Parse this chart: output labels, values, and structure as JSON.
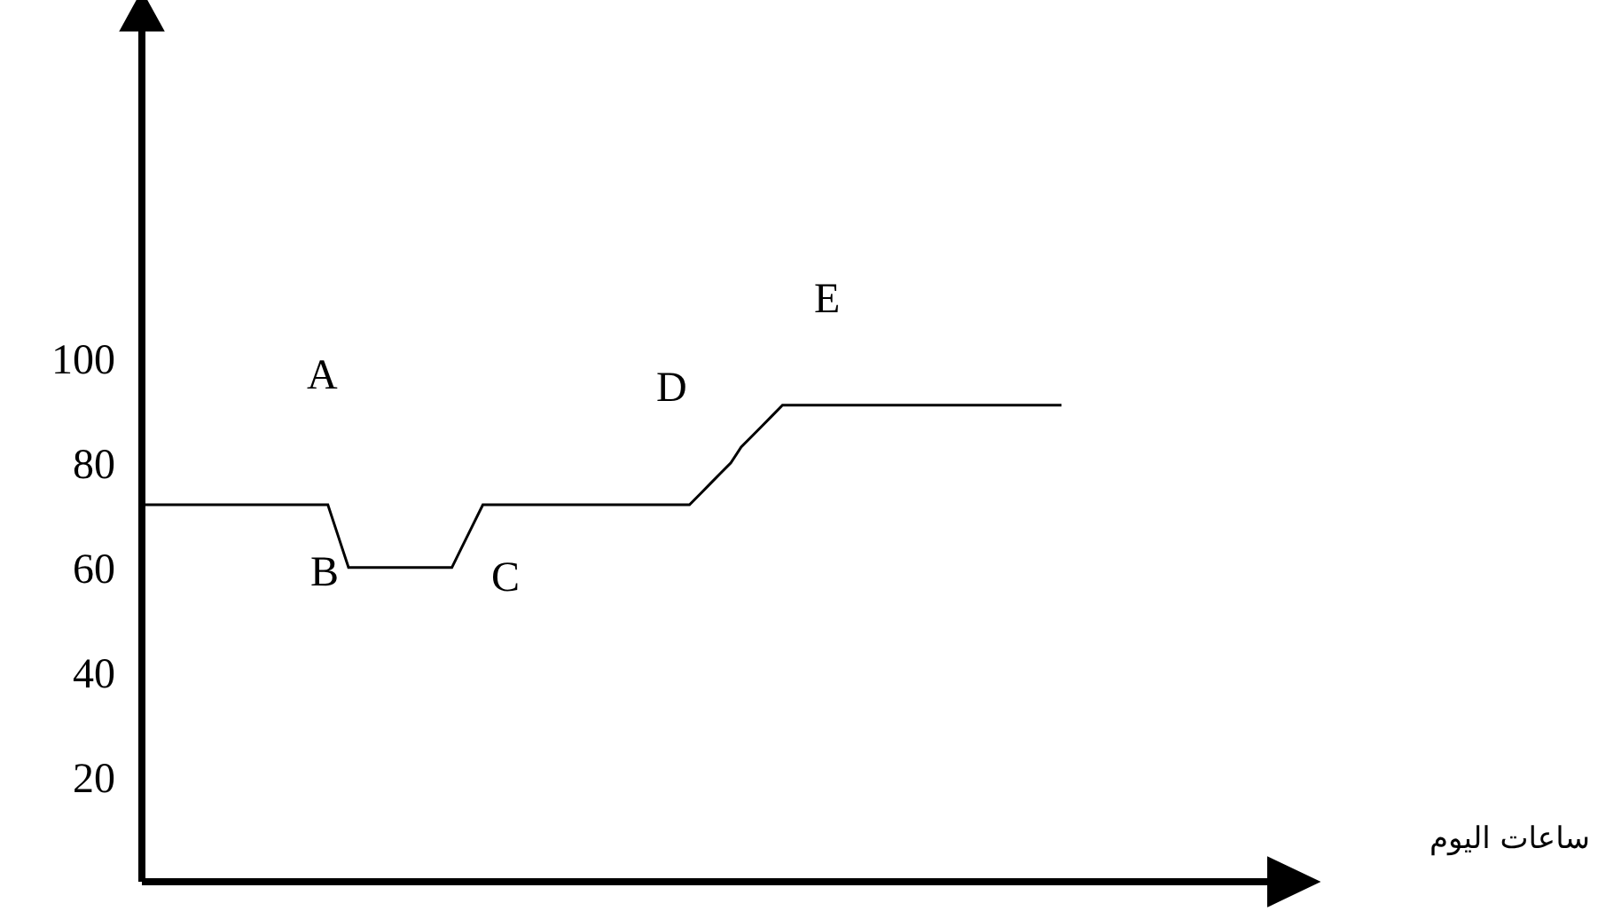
{
  "chart_data": {
    "type": "line",
    "categories": [
      null,
      null,
      null,
      null,
      null,
      null,
      null,
      null,
      null,
      null,
      null,
      null,
      null,
      null,
      null,
      null,
      null,
      null,
      null,
      null,
      null,
      null,
      null,
      null,
      null,
      null,
      null,
      null,
      null,
      null,
      null,
      null,
      null,
      null,
      null,
      null,
      null,
      null,
      null,
      null,
      null,
      null,
      null,
      null,
      null,
      null,
      null,
      null,
      null,
      null,
      null,
      null,
      null,
      null,
      null,
      null,
      null,
      null,
      null,
      null,
      null,
      null,
      null,
      null,
      null,
      null,
      null,
      null,
      null,
      null,
      null,
      null,
      null,
      null,
      null,
      null,
      null,
      null,
      null,
      null,
      null,
      null,
      null,
      null,
      null,
      null,
      null,
      null,
      null,
      null,
      null,
      null,
      null,
      null,
      null,
      null,
      null,
      null,
      null,
      null,
      null,
      null,
      null,
      null,
      null,
      null,
      null,
      null,
      null,
      null
    ],
    "series": [
      {
        "color": "#000000",
        "values": [
          72,
          72,
          72,
          72,
          72,
          72,
          72,
          72,
          72,
          72,
          72,
          72,
          72,
          72,
          72,
          72,
          72,
          72,
          72,
          66,
          60,
          60,
          60,
          60,
          60,
          60,
          60,
          60,
          60,
          60,
          60,
          64,
          68,
          72,
          72,
          72,
          72,
          72,
          72,
          72,
          72,
          72,
          72,
          72,
          72,
          72,
          72,
          72,
          72,
          72,
          72,
          72,
          72,
          72,
          74,
          76,
          78,
          80,
          83,
          85,
          87,
          89,
          91,
          91,
          91,
          91,
          91,
          91,
          91,
          91,
          91,
          91,
          91,
          91,
          91,
          91,
          91,
          91,
          91,
          91,
          91,
          91,
          91,
          91,
          91,
          91,
          91,
          91,
          91,
          91,
          null,
          null,
          null,
          null,
          null,
          null,
          null,
          null,
          null,
          null,
          null,
          null,
          null,
          null,
          null,
          null,
          null,
          null,
          null,
          null
        ]
      }
    ],
    "ylim": [
      0,
      165
    ],
    "yticks": [
      20,
      40,
      60,
      80,
      100
    ],
    "tick_labels": "y",
    "grid": false,
    "legend": false,
    "marker": "none",
    "line_style": "solid",
    "annotations": [
      "A",
      "B",
      "C",
      "D",
      "E",
      "ساعات اليوم"
    ]
  }
}
